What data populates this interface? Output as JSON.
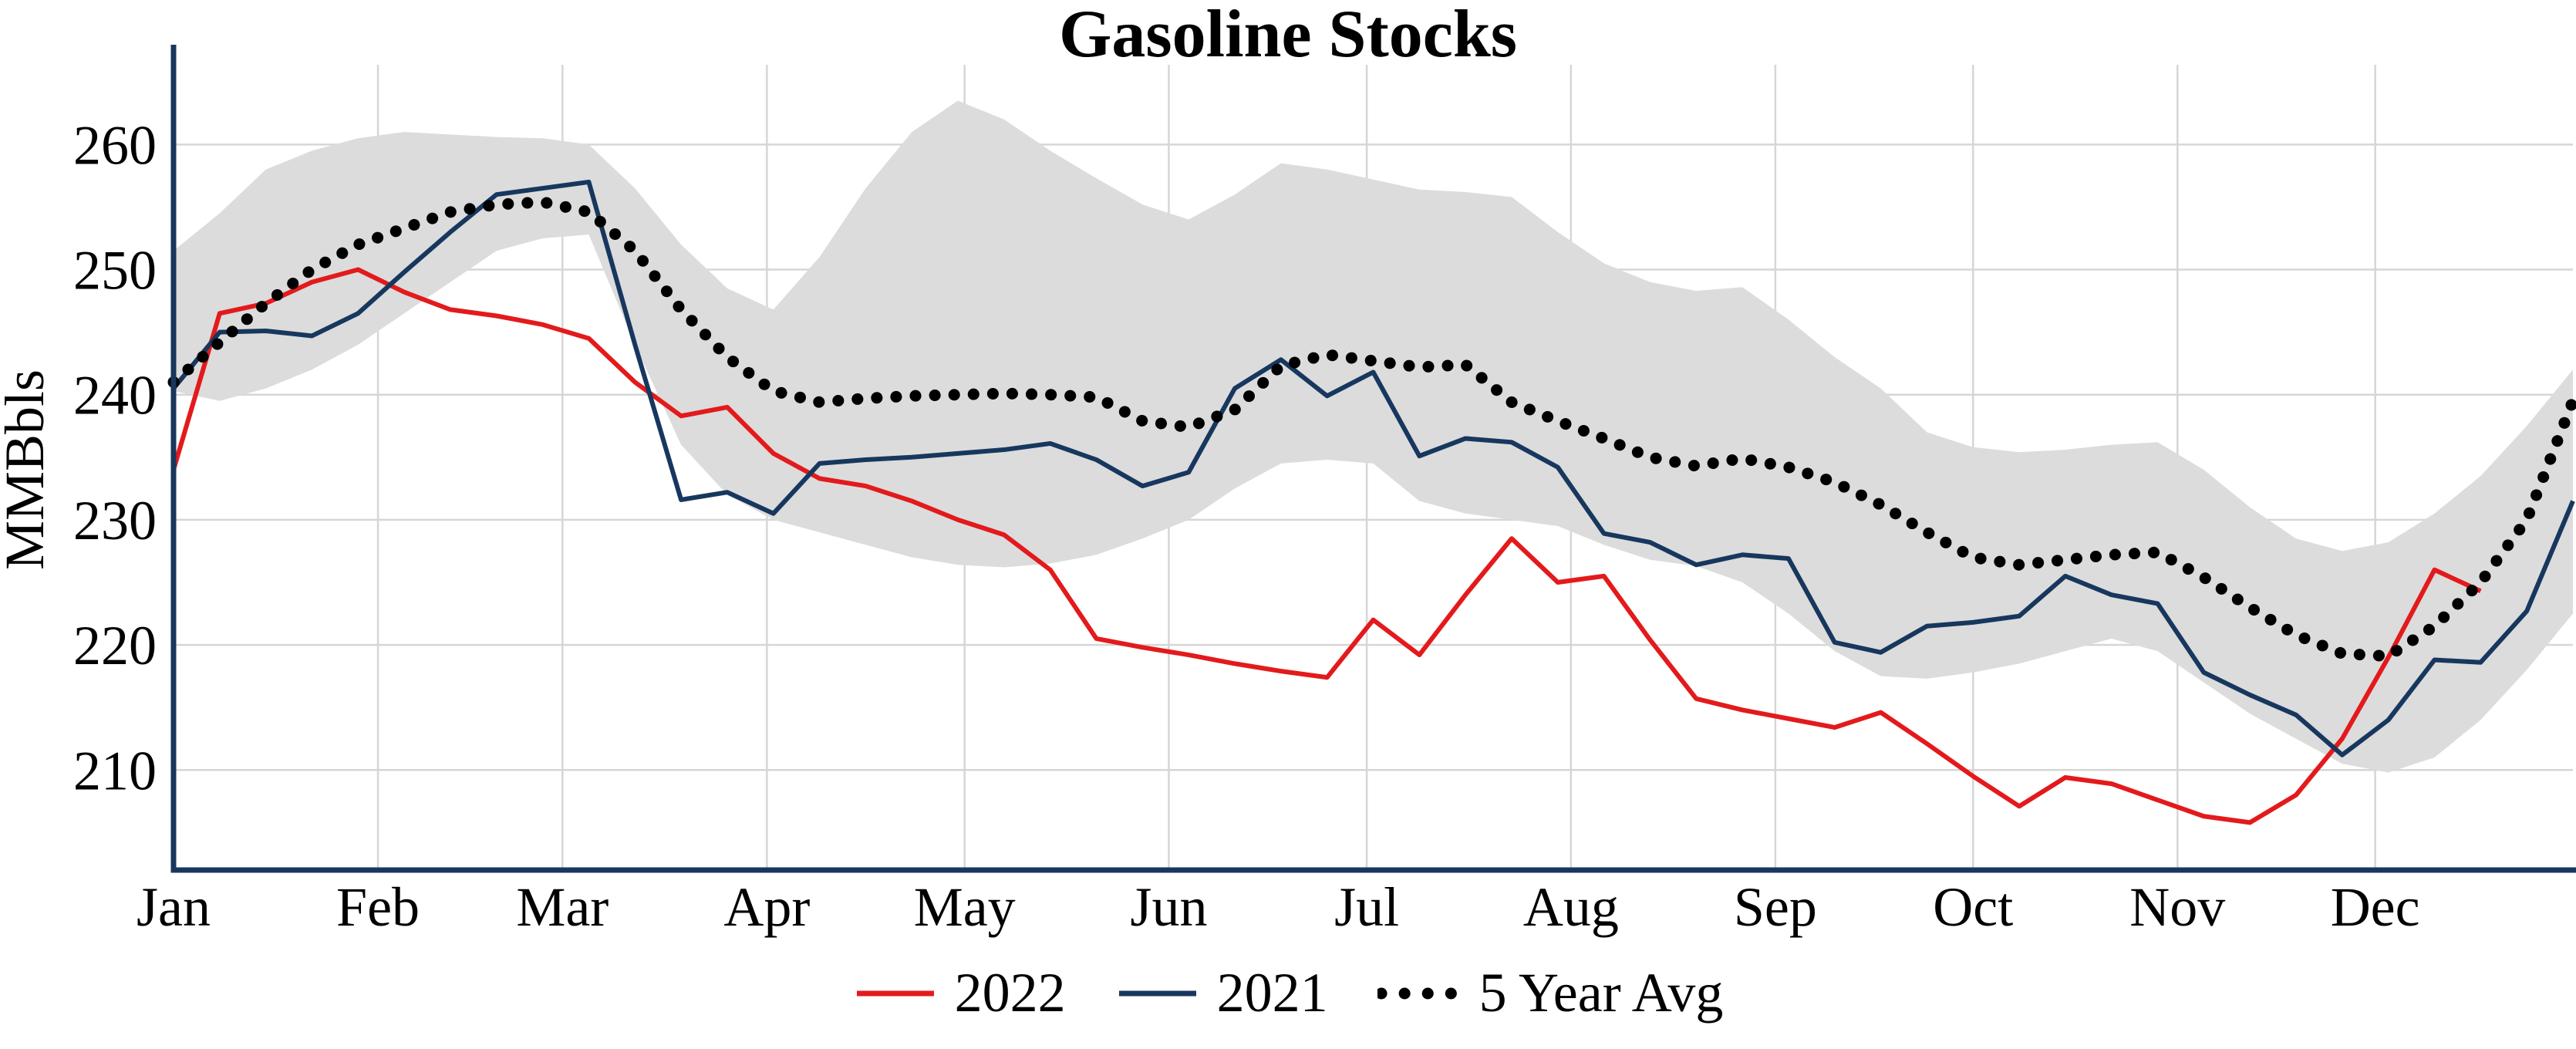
{
  "chart_data": {
    "type": "line",
    "title": "Gasoline Stocks",
    "ylabel": "MMBbls",
    "months": [
      "Jan",
      "Feb",
      "Mar",
      "Apr",
      "May",
      "Jun",
      "Jul",
      "Aug",
      "Sep",
      "Oct",
      "Nov",
      "Dec"
    ],
    "month_fractions": [
      0,
      0.0852,
      0.1621,
      0.2473,
      0.3297,
      0.4148,
      0.4973,
      0.5824,
      0.6676,
      0.75,
      0.8352,
      0.9176
    ],
    "ylim": [
      202,
      266
    ],
    "yticks": [
      210,
      220,
      230,
      240,
      250,
      260
    ],
    "grid": true,
    "grid_color": "#d6d6d6",
    "axis_color": "#17375e",
    "band": {
      "name": "5 Year Range",
      "color": "#dcdcdc",
      "upper": [
        251.5,
        254.5,
        258,
        259.5,
        260.5,
        261,
        260.8,
        260.6,
        260.5,
        260,
        256.5,
        252,
        248.5,
        246.8,
        251,
        256.5,
        261,
        263.5,
        262,
        259.5,
        257.3,
        255.2,
        254,
        256,
        258.5,
        258,
        257.2,
        256.4,
        256.2,
        255.8,
        253,
        250.5,
        249,
        248.3,
        248.6,
        246,
        243,
        240.5,
        237,
        235.8,
        235.4,
        235.6,
        236,
        236.2,
        234,
        231,
        228.5,
        227.5,
        228.2,
        230.5,
        233.5,
        237.5,
        242
      ],
      "lower": [
        240.3,
        239.5,
        240.5,
        242,
        244,
        246.5,
        249,
        251.5,
        252.5,
        252.8,
        244,
        236,
        232,
        230,
        229,
        228,
        227,
        226.4,
        226.2,
        226.5,
        227.2,
        228.5,
        230,
        232.5,
        234.5,
        234.8,
        234.5,
        231.5,
        230.5,
        230,
        229.5,
        228,
        226.8,
        226.3,
        225,
        222.5,
        219.5,
        217.5,
        217.3,
        217.8,
        218.5,
        219.5,
        220.5,
        219.5,
        217,
        214.5,
        212.5,
        210.5,
        209.8,
        211,
        214,
        218,
        222.5
      ]
    },
    "series": [
      {
        "name": "2022",
        "color": "#e31a1c",
        "style": "solid",
        "values": [
          234,
          246.5,
          247.3,
          249,
          250,
          248.2,
          246.8,
          246.3,
          245.6,
          244.5,
          241,
          238.3,
          239,
          235.3,
          233.3,
          232.7,
          231.5,
          230,
          228.8,
          226,
          220.5,
          219.8,
          219.2,
          218.5,
          217.9,
          217.4,
          222,
          219.2,
          224,
          228.5,
          225,
          225.5,
          220.4,
          215.7,
          214.8,
          214.1,
          213.4,
          214.6,
          212.1,
          209.5,
          207.1,
          209.4,
          208.9,
          207.6,
          206.3,
          205.8,
          208,
          212.5,
          219,
          226,
          224.3
        ]
      },
      {
        "name": "2021",
        "color": "#17375e",
        "style": "solid",
        "values": [
          240.5,
          245,
          245.1,
          244.7,
          246.5,
          249.8,
          253,
          256,
          256.5,
          257,
          244,
          231.6,
          232.2,
          230.5,
          234.5,
          234.8,
          235,
          235.3,
          235.6,
          236.1,
          234.8,
          232.7,
          233.8,
          240.5,
          242.8,
          239.9,
          241.8,
          235.1,
          236.5,
          236.2,
          234.2,
          228.9,
          228.2,
          226.4,
          227.2,
          226.9,
          220.2,
          219.4,
          221.5,
          221.8,
          222.3,
          225.5,
          224,
          223.3,
          217.8,
          216,
          214.4,
          211.2,
          214,
          218.8,
          218.6,
          222.7,
          231.5
        ]
      },
      {
        "name": "5 Year Avg",
        "color": "#000000",
        "style": "dotted",
        "values": [
          241,
          244.2,
          247.3,
          250,
          252,
          253.3,
          254.6,
          255.2,
          255.4,
          254.6,
          251.5,
          246.8,
          243,
          240.3,
          239.4,
          239.7,
          239.9,
          240,
          240.1,
          240,
          239.8,
          237.9,
          237.4,
          238.8,
          242.3,
          243.2,
          242.7,
          242.2,
          242.4,
          239.4,
          237.9,
          236.5,
          235,
          234.3,
          234.9,
          234.2,
          233,
          231.2,
          229,
          227,
          226.4,
          226.8,
          227.2,
          227.4,
          225.4,
          223,
          220.8,
          219.3,
          219.1,
          221.5,
          225,
          230,
          239.5
        ]
      }
    ],
    "legend": {
      "position": "bottom",
      "entries": [
        "2022",
        "2021",
        "5 Year Avg"
      ]
    }
  }
}
